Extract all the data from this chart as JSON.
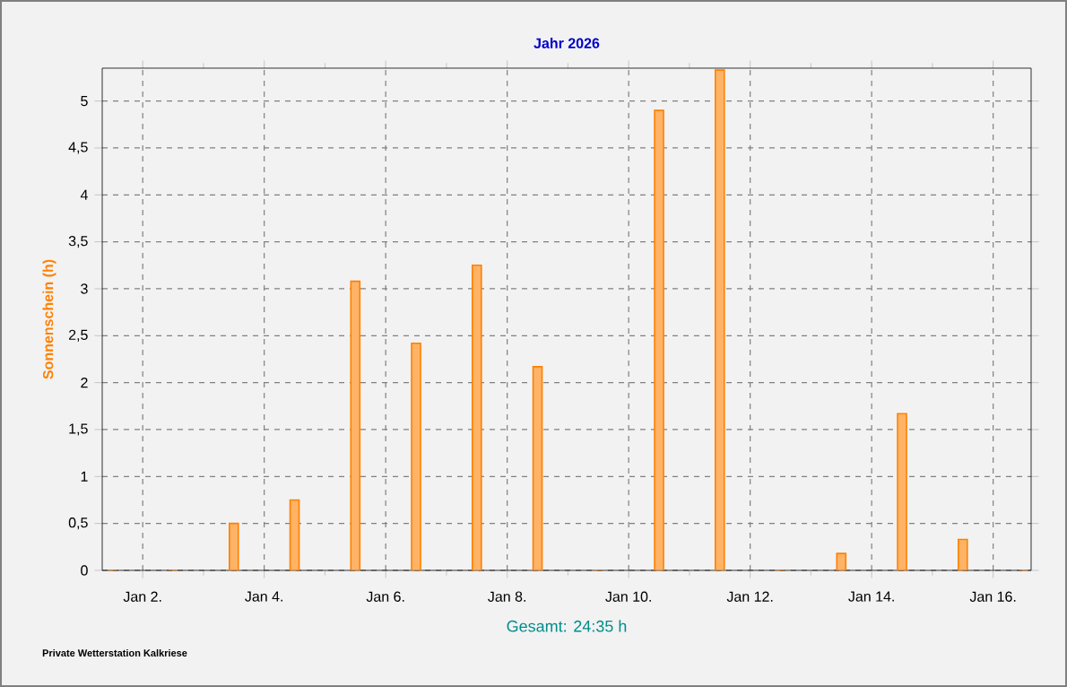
{
  "chart_data": {
    "type": "bar",
    "title": "Jahr 2026",
    "ylabel": "Sonnenschein  (h)",
    "x": [
      "2026-01-01T12:00",
      "2026-01-02T12:00",
      "2026-01-03T12:00",
      "2026-01-04T12:00",
      "2026-01-05T12:00",
      "2026-01-06T12:00",
      "2026-01-07T12:00",
      "2026-01-08T12:00",
      "2026-01-09T12:00",
      "2026-01-10T12:00",
      "2026-01-11T12:00",
      "2026-01-12T12:00",
      "2026-01-13T12:00",
      "2026-01-14T12:00",
      "2026-01-15T12:00",
      "2026-01-16T12:00"
    ],
    "values": [
      0,
      0,
      0.5,
      0.75,
      3.08,
      2.42,
      3.25,
      2.17,
      0,
      4.9,
      5.33,
      0,
      0.18,
      1.67,
      0.33,
      0
    ],
    "color": "#ff8000",
    "xlim": [
      "2026-01-01T08:00",
      "2026-01-16T15:00"
    ],
    "xticks": [
      {
        "value": "2026-01-02",
        "label": "Jan 2."
      },
      {
        "value": "2026-01-04",
        "label": "Jan 4."
      },
      {
        "value": "2026-01-06",
        "label": "Jan 6."
      },
      {
        "value": "2026-01-08",
        "label": "Jan 8."
      },
      {
        "value": "2026-01-10",
        "label": "Jan 10."
      },
      {
        "value": "2026-01-12",
        "label": "Jan 12."
      },
      {
        "value": "2026-01-14",
        "label": "Jan 14."
      },
      {
        "value": "2026-01-16",
        "label": "Jan 16."
      }
    ],
    "ylim": [
      0,
      5.35
    ],
    "yticks": [
      0,
      {
        "value": 0.5,
        "label": "0,5"
      },
      1,
      {
        "value": 1.5,
        "label": "1,5"
      },
      2,
      {
        "value": 2.5,
        "label": "2,5"
      },
      3,
      {
        "value": 3.5,
        "label": "3,5"
      },
      4,
      {
        "value": 4.5,
        "label": "4,5"
      },
      5
    ],
    "grid": true,
    "annotations": [
      "Gesamt: 24:35 h",
      "Private Wetterstation Kalkriese"
    ]
  }
}
